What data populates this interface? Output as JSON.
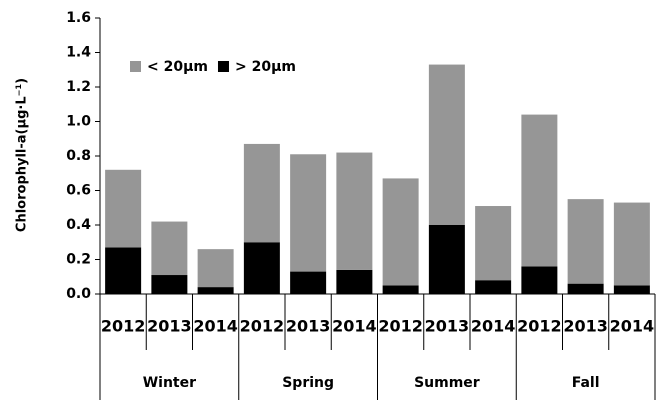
{
  "chart_data": {
    "type": "stacked-bar",
    "y_label": "Chlorophyll-a(μg·L⁻¹)",
    "categories": [
      "2012",
      "2013",
      "2014",
      "2012",
      "2013",
      "2014",
      "2012",
      "2013",
      "2014",
      "2012",
      "2013",
      "2014"
    ],
    "groups": [
      "Winter",
      "Spring",
      "Summer",
      "Fall"
    ],
    "series": [
      {
        "name": "> 20μm",
        "color": "#000000",
        "values": [
          0.27,
          0.11,
          0.04,
          0.3,
          0.13,
          0.14,
          0.05,
          0.4,
          0.08,
          0.16,
          0.06,
          0.05
        ]
      },
      {
        "name": "< 20μm",
        "color": "#969696",
        "values": [
          0.45,
          0.31,
          0.22,
          0.57,
          0.68,
          0.68,
          0.62,
          0.93,
          0.43,
          0.88,
          0.49,
          0.48
        ]
      }
    ],
    "legend_order": [
      1,
      0
    ],
    "legend": "upper left",
    "ylim": [
      0,
      1.6
    ],
    "yticks": [
      {
        "value": 0,
        "label": "0.0"
      },
      0.2,
      0.4,
      0.6,
      0.8,
      {
        "value": 1,
        "label": "1.0"
      },
      1.2,
      1.4,
      1.6
    ]
  }
}
